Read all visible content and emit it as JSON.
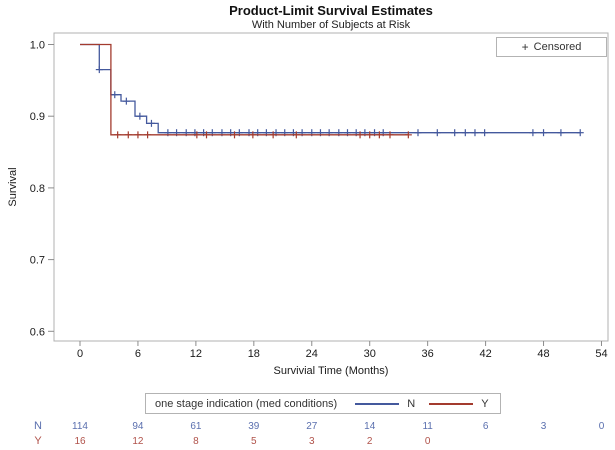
{
  "chart_data": {
    "type": "line",
    "subtype": "kaplan-meier-step",
    "title": "Product-Limit Survival Estimates",
    "subtitle": "With Number of Subjects at Risk",
    "xlabel": "Survivial Time (Months)",
    "ylabel": "Survival",
    "censored_marker": {
      "symbol": "+",
      "label": "Censored"
    },
    "x_ticks": [
      0,
      6,
      12,
      18,
      24,
      30,
      36,
      42,
      48,
      54
    ],
    "y_ticks": [
      "1.0",
      "0.9",
      "0.8",
      "0.7",
      "0.6"
    ],
    "y_tick_values": [
      1.0,
      0.9,
      0.8,
      0.7,
      0.6
    ],
    "xlim": [
      -2.7,
      54.7
    ],
    "ylim": [
      0.585,
      1.016
    ],
    "grid": false,
    "legend": {
      "position": "bottom",
      "title": "one stage indication (med conditions)",
      "entries": [
        {
          "label": "N",
          "color": "#44599D"
        },
        {
          "label": "Y",
          "color": "#A33B2E"
        }
      ]
    },
    "series": [
      {
        "name": "N",
        "color": "#44599D",
        "steps": [
          [
            0,
            1.0
          ],
          [
            2.0,
            1.0
          ],
          [
            2.0,
            0.965
          ],
          [
            3.2,
            0.965
          ],
          [
            3.2,
            0.93
          ],
          [
            4.25,
            0.93
          ],
          [
            4.25,
            0.921
          ],
          [
            5.7,
            0.921
          ],
          [
            5.7,
            0.9
          ],
          [
            6.9,
            0.9
          ],
          [
            6.9,
            0.89
          ],
          [
            8.1,
            0.89
          ],
          [
            8.1,
            0.877
          ],
          [
            51.8,
            0.877
          ]
        ],
        "censors": [
          [
            2.0,
            0.965
          ],
          [
            3.6,
            0.93
          ],
          [
            4.8,
            0.921
          ],
          [
            6.2,
            0.9
          ],
          [
            7.4,
            0.89
          ],
          [
            9.1,
            0.877
          ],
          [
            10.0,
            0.877
          ],
          [
            11.0,
            0.877
          ],
          [
            11.9,
            0.877
          ],
          [
            12.8,
            0.877
          ],
          [
            13.7,
            0.877
          ],
          [
            14.7,
            0.877
          ],
          [
            15.6,
            0.877
          ],
          [
            16.5,
            0.877
          ],
          [
            17.5,
            0.877
          ],
          [
            18.4,
            0.877
          ],
          [
            19.3,
            0.877
          ],
          [
            20.3,
            0.877
          ],
          [
            21.2,
            0.877
          ],
          [
            22.1,
            0.877
          ],
          [
            23.0,
            0.877
          ],
          [
            24.0,
            0.877
          ],
          [
            24.9,
            0.877
          ],
          [
            25.8,
            0.877
          ],
          [
            26.8,
            0.877
          ],
          [
            27.7,
            0.877
          ],
          [
            28.6,
            0.877
          ],
          [
            29.5,
            0.877
          ],
          [
            30.5,
            0.877
          ],
          [
            31.4,
            0.877
          ],
          [
            35.0,
            0.877
          ],
          [
            37.0,
            0.877
          ],
          [
            38.8,
            0.877
          ],
          [
            39.9,
            0.877
          ],
          [
            40.9,
            0.877
          ],
          [
            41.9,
            0.877
          ],
          [
            46.9,
            0.877
          ],
          [
            48.0,
            0.877
          ],
          [
            49.8,
            0.877
          ],
          [
            51.8,
            0.877
          ]
        ]
      },
      {
        "name": "Y",
        "color": "#A33B2E",
        "steps": [
          [
            0,
            1.0
          ],
          [
            3.2,
            1.0
          ],
          [
            3.2,
            0.874
          ],
          [
            34.0,
            0.874
          ]
        ],
        "censors": [
          [
            3.9,
            0.874
          ],
          [
            5.0,
            0.874
          ],
          [
            6.0,
            0.874
          ],
          [
            7.0,
            0.874
          ],
          [
            12.1,
            0.874
          ],
          [
            13.1,
            0.874
          ],
          [
            16.0,
            0.874
          ],
          [
            17.9,
            0.874
          ],
          [
            20.0,
            0.874
          ],
          [
            22.4,
            0.874
          ],
          [
            29.0,
            0.874
          ],
          [
            30.0,
            0.874
          ],
          [
            31.0,
            0.874
          ],
          [
            32.1,
            0.874
          ],
          [
            34.0,
            0.874
          ]
        ]
      }
    ],
    "at_risk": {
      "times": [
        0,
        6,
        12,
        18,
        24,
        30,
        36,
        42,
        48,
        54
      ],
      "rows": [
        {
          "label": "N",
          "color": "#5A6FAE",
          "values": [
            "114",
            "94",
            "61",
            "39",
            "27",
            "14",
            "11",
            "6",
            "3",
            "0"
          ]
        },
        {
          "label": "Y",
          "color": "#B0524A",
          "values": [
            "16",
            "12",
            "8",
            "5",
            "3",
            "2",
            "0"
          ]
        }
      ]
    }
  }
}
